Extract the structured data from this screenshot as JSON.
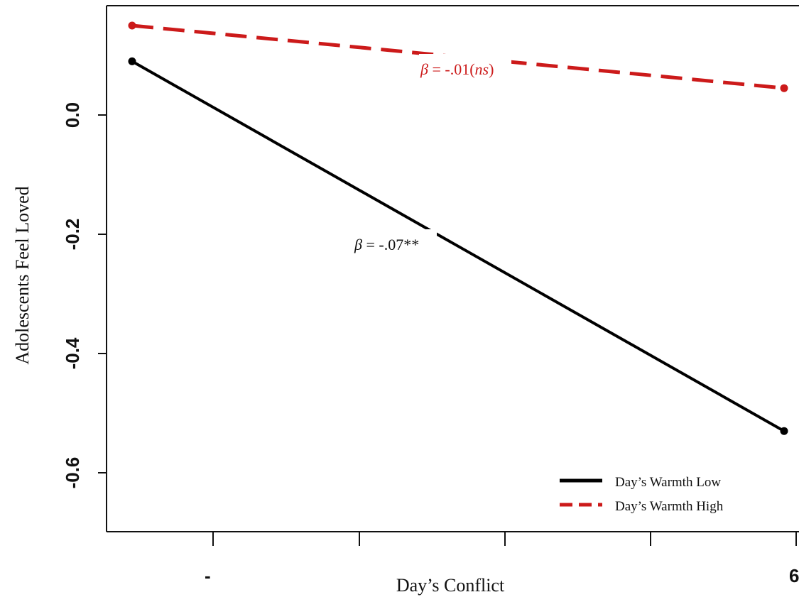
{
  "chart_data": {
    "type": "line",
    "title": "",
    "xlabel": "Day’s Conflict",
    "ylabel": "Adolescents Feel Loved",
    "x_tick_labels": [
      "-",
      "6"
    ],
    "y_ticks": [
      0.0,
      -0.2,
      -0.4,
      -0.6
    ],
    "y_tick_labels": [
      "0.0",
      "-0.2",
      "-0.4",
      "-0.6"
    ],
    "xlim": [
      -1,
      6
    ],
    "ylim": [
      -0.7,
      0.18
    ],
    "grid": false,
    "legend_position": "bottom-right",
    "x": [
      -1,
      6
    ],
    "series": [
      {
        "name": "Day’s Warmth Low",
        "values": [
          0.09,
          -0.53
        ],
        "color": "#000000",
        "style": "solid",
        "annotation": {
          "beta": "β",
          "text": " = -.07**"
        }
      },
      {
        "name": "Day’s Warmth High",
        "values": [
          0.15,
          0.045
        ],
        "color": "#cc1a1a",
        "style": "dashed",
        "annotation": {
          "beta": "β",
          "text": " = -.01(",
          "ns": "ns",
          "close": ")"
        }
      }
    ]
  }
}
